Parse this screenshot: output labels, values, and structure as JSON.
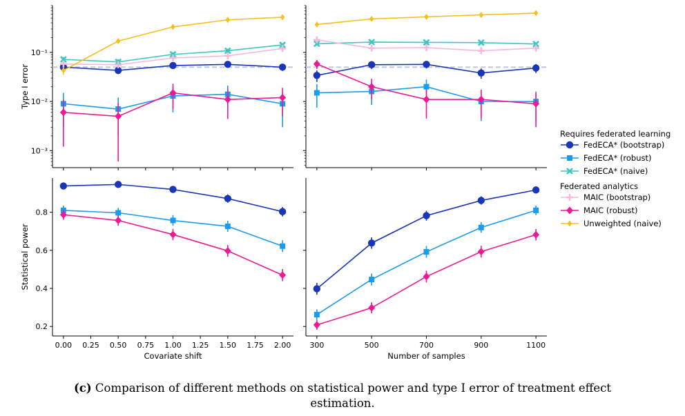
{
  "caption": {
    "label": "(c)",
    "line1": "Comparison of different methods on statistical power and type I error of treatment effect",
    "line2": "estimation."
  },
  "legend": {
    "group1_title": "Requires federated learning",
    "group2_title": "Federated analytics"
  },
  "series_styles": [
    {
      "name": "FedECA* (bootstrap)",
      "color": "#1a35b5",
      "marker": "circle"
    },
    {
      "name": "FedECA* (robust)",
      "color": "#1a9bef",
      "marker": "square"
    },
    {
      "name": "FedECA* (naive)",
      "color": "#3ec7c0",
      "marker": "x"
    },
    {
      "name": "MAIC (bootstrap)",
      "color": "#f5b8dc",
      "marker": "plus"
    },
    {
      "name": "MAIC (robust)",
      "color": "#ec1a93",
      "marker": "diamond"
    },
    {
      "name": "Unweighted (naive)",
      "color": "#f5c01a",
      "marker": "thin-diamond"
    }
  ],
  "reference_line": {
    "value": 0.05,
    "color": "#c0c8d8",
    "style": "dashed"
  },
  "chart_data": [
    {
      "panel": "top-left",
      "type": "line",
      "scale_y": "log",
      "xlabel": "",
      "ylabel": "Type I error",
      "x": [
        0.0,
        0.5,
        1.0,
        1.5,
        2.0
      ],
      "xticks": [
        "0.00",
        "0.25",
        "0.50",
        "0.75",
        "1.00",
        "1.25",
        "1.50",
        "1.75",
        "2.00"
      ],
      "xticks_shown": false,
      "yticks": [
        "10⁻³",
        "10⁻²",
        "10⁻¹"
      ],
      "ylim": [
        0.00045,
        0.9
      ],
      "series": [
        {
          "name": "FedECA* (bootstrap)",
          "values": [
            0.05,
            0.043,
            0.054,
            0.057,
            0.05
          ],
          "err": [
            0.007,
            0.007,
            0.008,
            0.008,
            0.008
          ]
        },
        {
          "name": "FedECA* (robust)",
          "values": [
            0.009,
            0.007,
            0.013,
            0.014,
            0.009
          ],
          "err": [
            0.006,
            0.005,
            0.007,
            0.007,
            0.006
          ]
        },
        {
          "name": "FedECA* (naive)",
          "values": [
            0.072,
            0.064,
            0.091,
            0.108,
            0.142
          ],
          "err": [
            0.009,
            0.009,
            0.01,
            0.011,
            0.012
          ]
        },
        {
          "name": "MAIC (bootstrap)",
          "values": [
            0.058,
            0.056,
            0.077,
            0.085,
            0.12
          ],
          "err": [
            0.008,
            0.008,
            0.009,
            0.01,
            0.012
          ]
        },
        {
          "name": "MAIC (robust)",
          "values": [
            0.006,
            0.005,
            0.015,
            0.011,
            0.012
          ],
          "err": [
            0.0048,
            0.0044,
            0.008,
            0.0066,
            0.007
          ]
        },
        {
          "name": "Unweighted (naive)",
          "values": [
            0.043,
            0.17,
            0.33,
            0.46,
            0.52
          ],
          "err": [
            0.008,
            0.015,
            0.016,
            0.016,
            0.016
          ]
        }
      ]
    },
    {
      "panel": "top-right",
      "type": "line",
      "scale_y": "log",
      "xlabel": "",
      "ylabel": "",
      "x": [
        300,
        500,
        700,
        900,
        1100
      ],
      "xticks": [
        "300",
        "500",
        "700",
        "900",
        "1100"
      ],
      "xticks_shown": false,
      "ylim": [
        0.00045,
        0.9
      ],
      "series": [
        {
          "name": "FedECA* (bootstrap)",
          "values": [
            0.034,
            0.056,
            0.057,
            0.038,
            0.048
          ],
          "err": [
            0.009,
            0.01,
            0.01,
            0.009,
            0.01
          ]
        },
        {
          "name": "FedECA* (robust)",
          "values": [
            0.015,
            0.016,
            0.02,
            0.01,
            0.01
          ],
          "err": [
            0.0075,
            0.0075,
            0.008,
            0.006,
            0.006
          ]
        },
        {
          "name": "FedECA* (naive)",
          "values": [
            0.15,
            0.162,
            0.16,
            0.158,
            0.148
          ],
          "err": [
            0.012,
            0.012,
            0.012,
            0.012,
            0.012
          ]
        },
        {
          "name": "MAIC (bootstrap)",
          "values": [
            0.18,
            0.122,
            0.125,
            0.108,
            0.122
          ],
          "err": [
            0.02,
            0.014,
            0.014,
            0.013,
            0.014
          ]
        },
        {
          "name": "MAIC (robust)",
          "values": [
            0.058,
            0.02,
            0.011,
            0.011,
            0.009
          ],
          "err": [
            0.012,
            0.009,
            0.0065,
            0.0065,
            0.006
          ]
        },
        {
          "name": "Unweighted (naive)",
          "values": [
            0.37,
            0.48,
            0.53,
            0.58,
            0.63
          ],
          "err": [
            0.016,
            0.016,
            0.016,
            0.016,
            0.016
          ]
        }
      ]
    },
    {
      "panel": "bottom-left",
      "type": "line",
      "scale_y": "linear",
      "xlabel": "Covariate shift",
      "ylabel": "Statistical power",
      "x": [
        0.0,
        0.5,
        1.0,
        1.5,
        2.0
      ],
      "xticks": [
        "0.00",
        "0.25",
        "0.50",
        "0.75",
        "1.00",
        "1.25",
        "1.50",
        "1.75",
        "2.00"
      ],
      "xticks_shown": true,
      "yticks": [
        "0.2",
        "0.4",
        "0.6",
        "0.8"
      ],
      "ylim": [
        0.15,
        0.98
      ],
      "series": [
        {
          "name": "FedECA* (bootstrap)",
          "values": [
            0.938,
            0.946,
            0.92,
            0.872,
            0.803
          ],
          "err": [
            0.015,
            0.015,
            0.018,
            0.022,
            0.025
          ]
        },
        {
          "name": "FedECA* (robust)",
          "values": [
            0.81,
            0.797,
            0.757,
            0.726,
            0.622
          ],
          "err": [
            0.025,
            0.026,
            0.028,
            0.029,
            0.031
          ]
        },
        {
          "name": "MAIC (robust)",
          "values": [
            0.787,
            0.757,
            0.683,
            0.597,
            0.47
          ],
          "err": [
            0.026,
            0.028,
            0.03,
            0.031,
            0.032
          ]
        }
      ]
    },
    {
      "panel": "bottom-right",
      "type": "line",
      "scale_y": "linear",
      "xlabel": "Number of samples",
      "ylabel": "",
      "x": [
        300,
        500,
        700,
        900,
        1100
      ],
      "xticks": [
        "300",
        "500",
        "700",
        "900",
        "1100"
      ],
      "xticks_shown": true,
      "ylim": [
        0.15,
        0.98
      ],
      "series": [
        {
          "name": "FedECA* (bootstrap)",
          "values": [
            0.398,
            0.638,
            0.782,
            0.862,
            0.917
          ],
          "err": [
            0.031,
            0.03,
            0.026,
            0.022,
            0.018
          ]
        },
        {
          "name": "FedECA* (robust)",
          "values": [
            0.262,
            0.447,
            0.592,
            0.72,
            0.81
          ],
          "err": [
            0.028,
            0.031,
            0.031,
            0.028,
            0.025
          ]
        },
        {
          "name": "MAIC (robust)",
          "values": [
            0.208,
            0.298,
            0.462,
            0.593,
            0.682
          ],
          "err": [
            0.025,
            0.029,
            0.031,
            0.031,
            0.03
          ]
        }
      ]
    }
  ]
}
